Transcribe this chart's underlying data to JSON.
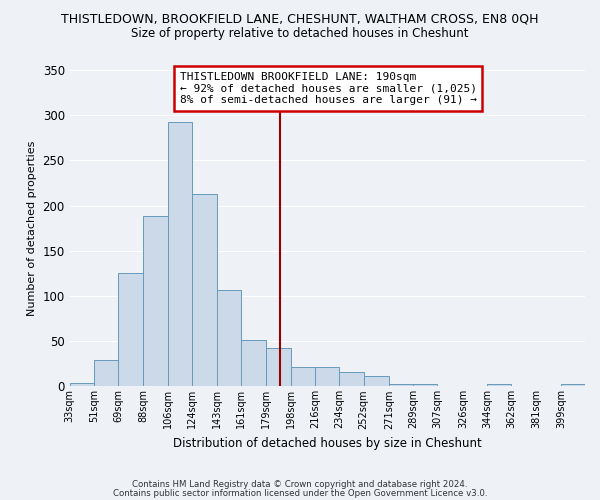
{
  "title": "THISTLEDOWN, BROOKFIELD LANE, CHESHUNT, WALTHAM CROSS, EN8 0QH",
  "subtitle": "Size of property relative to detached houses in Cheshunt",
  "xlabel": "Distribution of detached houses by size in Cheshunt",
  "ylabel": "Number of detached properties",
  "bar_color": "#ccd9e8",
  "bar_edge_color": "#6699bb",
  "background_color": "#eef2f7",
  "grid_color": "#ffffff",
  "categories": [
    "33sqm",
    "51sqm",
    "69sqm",
    "88sqm",
    "106sqm",
    "124sqm",
    "143sqm",
    "161sqm",
    "179sqm",
    "198sqm",
    "216sqm",
    "234sqm",
    "252sqm",
    "271sqm",
    "289sqm",
    "307sqm",
    "326sqm",
    "344sqm",
    "362sqm",
    "381sqm",
    "399sqm"
  ],
  "values": [
    4,
    29,
    125,
    188,
    293,
    213,
    107,
    51,
    43,
    22,
    22,
    16,
    11,
    3,
    3,
    0,
    0,
    3,
    0,
    0,
    3
  ],
  "bin_edges": [
    33,
    51,
    69,
    88,
    106,
    124,
    143,
    161,
    179,
    198,
    216,
    234,
    252,
    271,
    289,
    307,
    326,
    344,
    362,
    381,
    399,
    417
  ],
  "vline_x": 190,
  "vline_color": "#990000",
  "ylim": [
    0,
    350
  ],
  "yticks": [
    0,
    50,
    100,
    150,
    200,
    250,
    300,
    350
  ],
  "annotation_line1": "THISTLEDOWN BROOKFIELD LANE: 190sqm",
  "annotation_line2": "← 92% of detached houses are smaller (1,025)",
  "annotation_line3": "8% of semi-detached houses are larger (91) →",
  "annotation_box_color": "#ffffff",
  "annotation_box_edge": "#cc0000",
  "footer_line1": "Contains HM Land Registry data © Crown copyright and database right 2024.",
  "footer_line2": "Contains public sector information licensed under the Open Government Licence v3.0."
}
